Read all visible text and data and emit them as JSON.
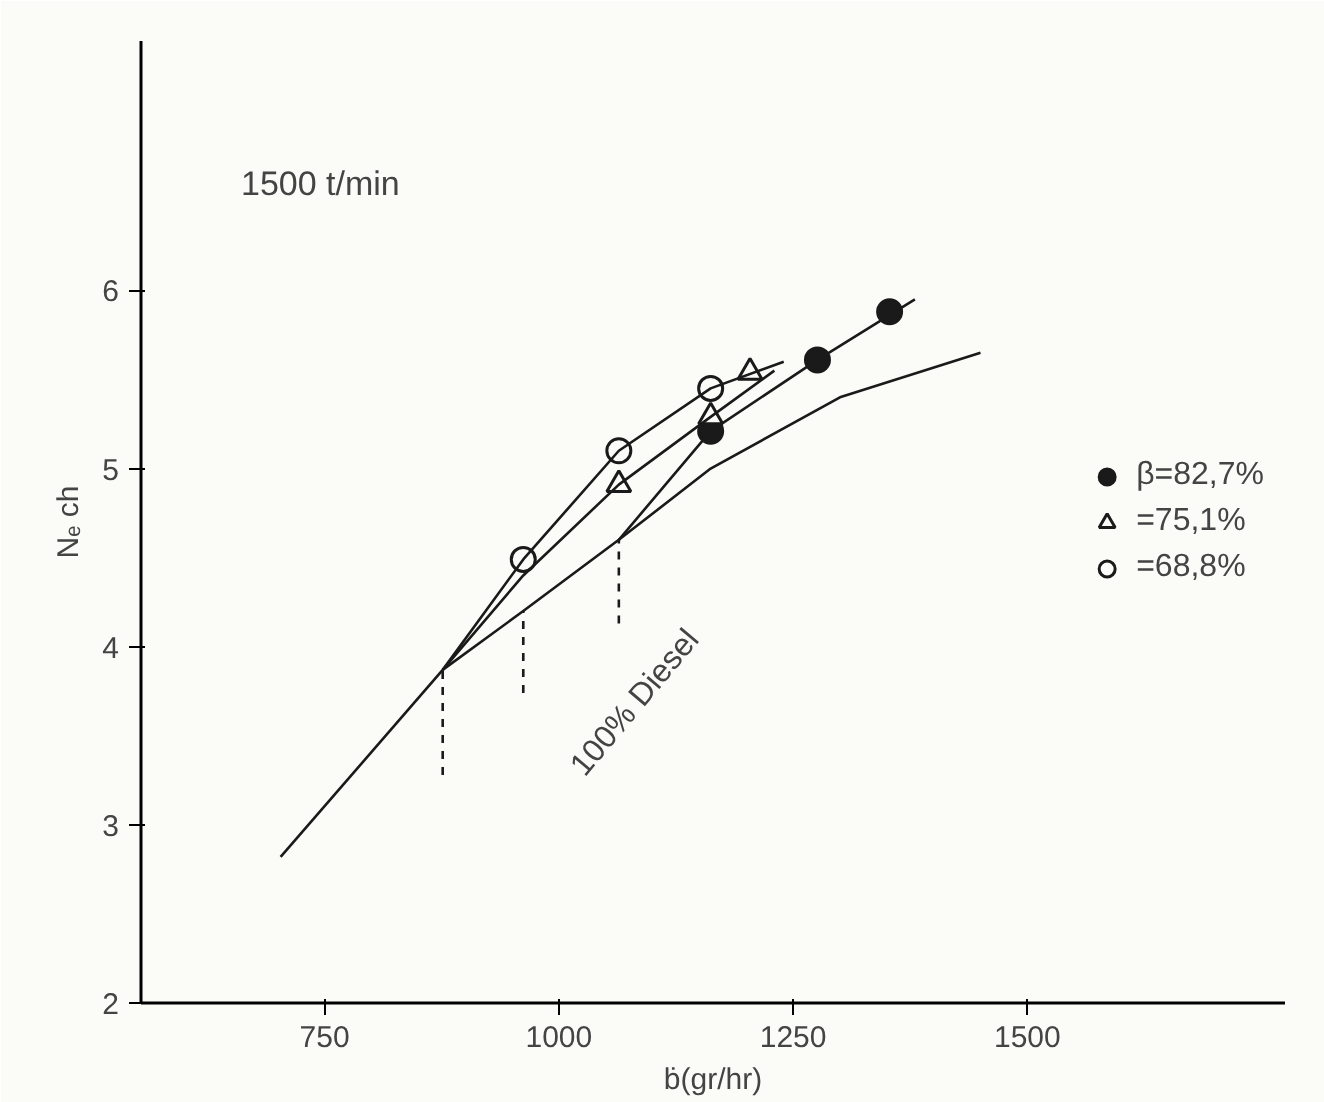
{
  "chart_data": {
    "type": "scatter",
    "xlabel": "ḃ(gr/hr)",
    "ylabel": "Nₑ ch",
    "xlim": [
      554,
      1775
    ],
    "ylim": [
      2,
      7.4
    ],
    "xticks": [
      750,
      1000,
      1250,
      1500
    ],
    "yticks": [
      2,
      3,
      4,
      5,
      6
    ],
    "grid": false,
    "legend": "right",
    "annotations": [
      "1500 t/min",
      "100% Diesel"
    ],
    "series": [
      {
        "name": "β=82,7%",
        "color": "#1a1a1a",
        "marker": "circle",
        "x": [
          1162,
          1276,
          1353
        ],
        "values": [
          5.21,
          5.61,
          5.88
        ]
      },
      {
        "name": "=75,1%",
        "color": "#1a1a1a",
        "marker": "triangle",
        "x": [
          1064,
          1162,
          1204
        ],
        "values": [
          4.91,
          5.29,
          5.54
        ]
      },
      {
        "name": "=68,8%",
        "color": "#1a1a1a",
        "marker": "circle",
        "x": [
          962,
          1064,
          1162
        ],
        "values": [
          4.49,
          5.1,
          5.45
        ]
      },
      {
        "type": "line",
        "color": "#1a1a1a",
        "line_style": "solid",
        "x": [
          703,
          876,
          962,
          1064,
          1162,
          1300,
          1450
        ],
        "values": [
          2.82,
          3.87,
          4.2,
          4.6,
          5.0,
          5.4,
          5.65
        ]
      },
      {
        "type": "line",
        "color": "#1a1a1a",
        "line_style": "solid",
        "x": [
          876,
          962,
          1064,
          1162,
          1240
        ],
        "values": [
          3.87,
          4.49,
          5.1,
          5.45,
          5.6
        ]
      },
      {
        "type": "line",
        "color": "#1a1a1a",
        "line_style": "solid",
        "x": [
          876,
          962,
          1064,
          1162,
          1230
        ],
        "values": [
          3.87,
          4.4,
          4.91,
          5.29,
          5.55
        ]
      },
      {
        "type": "line",
        "color": "#1a1a1a",
        "line_style": "solid",
        "x": [
          1064,
          1162,
          1276,
          1380
        ],
        "values": [
          4.6,
          5.21,
          5.61,
          5.95
        ]
      },
      {
        "type": "line",
        "color": "#1a1a1a",
        "line_style": "dashed",
        "x": [
          876,
          876
        ],
        "values": [
          3.28,
          3.87
        ]
      },
      {
        "type": "line",
        "color": "#1a1a1a",
        "line_style": "dashed",
        "x": [
          962,
          962
        ],
        "values": [
          3.74,
          4.2
        ]
      },
      {
        "type": "line",
        "color": "#1a1a1a",
        "line_style": "dashed",
        "x": [
          1064,
          1064
        ],
        "values": [
          4.13,
          4.6
        ]
      }
    ]
  }
}
